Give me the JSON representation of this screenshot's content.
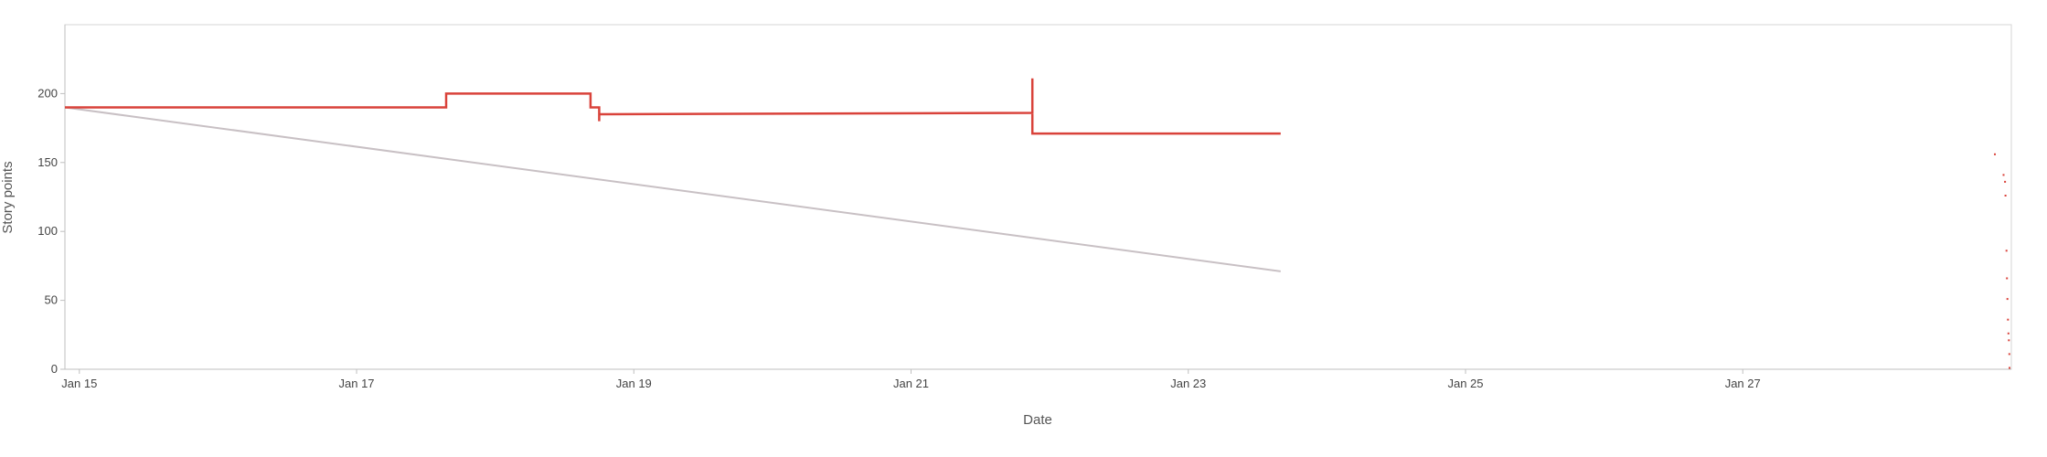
{
  "chart_data": {
    "type": "line",
    "title": "",
    "xlabel": "Date",
    "ylabel": "Story points",
    "x_range": [
      "2024-01-14T21:30",
      "2024-01-28T22:30"
    ],
    "ylim": [
      0,
      250
    ],
    "y_ticks": [
      0,
      50,
      100,
      150,
      200
    ],
    "x_ticks": [
      {
        "date": "2024-01-15T00:00",
        "label": "Jan 15"
      },
      {
        "date": "2024-01-17T00:00",
        "label": "Jan 17"
      },
      {
        "date": "2024-01-19T00:00",
        "label": "Jan 19"
      },
      {
        "date": "2024-01-21T00:00",
        "label": "Jan 21"
      },
      {
        "date": "2024-01-23T00:00",
        "label": "Jan 23"
      },
      {
        "date": "2024-01-25T00:00",
        "label": "Jan 25"
      },
      {
        "date": "2024-01-27T00:00",
        "label": "Jan 27"
      }
    ],
    "grid": false,
    "legend": "none",
    "series": [
      {
        "role": "guideline",
        "color": "#c8c0c4",
        "points": [
          {
            "x": "2024-01-14T21:30",
            "y": 190
          },
          {
            "x": "2024-01-23T16:00",
            "y": 71
          }
        ]
      },
      {
        "role": "remaining",
        "color": "#d9423a",
        "points": [
          {
            "x": "2024-01-14T21:30",
            "y": 190
          },
          {
            "x": "2024-01-17T15:30",
            "y": 190
          },
          {
            "x": "2024-01-17T15:30",
            "y": 200
          },
          {
            "x": "2024-01-18T16:30",
            "y": 200
          },
          {
            "x": "2024-01-18T16:30",
            "y": 190
          },
          {
            "x": "2024-01-18T18:00",
            "y": 190
          },
          {
            "x": "2024-01-18T18:00",
            "y": 180
          },
          {
            "x": "2024-01-18T18:00",
            "y": 185
          },
          {
            "x": "2024-01-21T21:00",
            "y": 186
          },
          {
            "x": "2024-01-21T21:00",
            "y": 211
          },
          {
            "x": "2024-01-21T21:00",
            "y": 171
          },
          {
            "x": "2024-01-23T16:00",
            "y": 171
          }
        ]
      }
    ],
    "scattered_marks": [
      {
        "x": "2024-01-28T19:30",
        "y": 156,
        "color": "#d9423a"
      },
      {
        "x": "2024-01-28T21:00",
        "y": 141,
        "color": "#d9423a"
      },
      {
        "x": "2024-01-28T21:15",
        "y": 136,
        "color": "#d9423a"
      },
      {
        "x": "2024-01-28T21:20",
        "y": 126,
        "color": "#d9423a"
      },
      {
        "x": "2024-01-28T21:30",
        "y": 86,
        "color": "#d9423a"
      },
      {
        "x": "2024-01-28T21:35",
        "y": 66,
        "color": "#d9423a"
      },
      {
        "x": "2024-01-28T21:40",
        "y": 51,
        "color": "#d9423a"
      },
      {
        "x": "2024-01-28T21:45",
        "y": 36,
        "color": "#d9423a"
      },
      {
        "x": "2024-01-28T21:50",
        "y": 26,
        "color": "#d9423a"
      },
      {
        "x": "2024-01-28T21:55",
        "y": 21,
        "color": "#d9423a"
      },
      {
        "x": "2024-01-28T22:00",
        "y": 11,
        "color": "#d9423a"
      },
      {
        "x": "2024-01-28T22:10",
        "y": 1,
        "color": "#d9423a"
      }
    ],
    "colors": {
      "remaining": "#d9423a",
      "guideline": "#c8c0c4",
      "frame": "#d6d6d6",
      "axis": "#bfbfbf"
    }
  }
}
